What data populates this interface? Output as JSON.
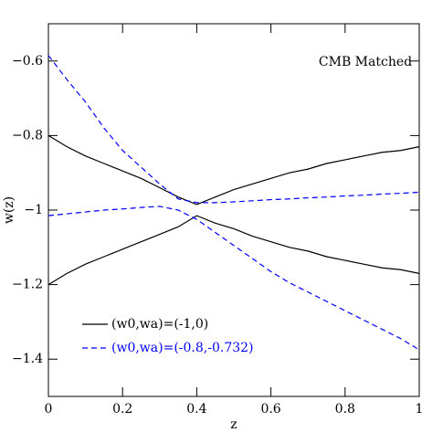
{
  "chart_data": {
    "type": "line",
    "annotation": "CMB Matched",
    "xlabel": "z",
    "ylabel": "w(z)",
    "x": [
      0,
      0.05,
      0.1,
      0.15,
      0.2,
      0.25,
      0.3,
      0.35,
      0.4,
      0.45,
      0.5,
      0.55,
      0.6,
      0.65,
      0.7,
      0.75,
      0.8,
      0.85,
      0.9,
      0.95,
      1
    ],
    "series": [
      {
        "name": "(w0,wa)=(-1,0)",
        "color": "#000000",
        "dashed": false,
        "curves": [
          [
            -0.8,
            -0.83,
            -0.855,
            -0.875,
            -0.895,
            -0.915,
            -0.94,
            -0.965,
            -0.985,
            -0.965,
            -0.945,
            -0.93,
            -0.915,
            -0.9,
            -0.89,
            -0.875,
            -0.865,
            -0.855,
            -0.845,
            -0.84,
            -0.83
          ],
          [
            -1.2,
            -1.17,
            -1.145,
            -1.125,
            -1.105,
            -1.085,
            -1.065,
            -1.045,
            -1.015,
            -1.035,
            -1.05,
            -1.07,
            -1.085,
            -1.1,
            -1.11,
            -1.125,
            -1.135,
            -1.145,
            -1.155,
            -1.16,
            -1.17
          ]
        ]
      },
      {
        "name": "(w0,wa)=(-0.8,-0.732)",
        "color": "#0000ff",
        "dashed": true,
        "curves": [
          [
            -0.585,
            -0.65,
            -0.71,
            -0.78,
            -0.84,
            -0.885,
            -0.93,
            -0.97,
            -0.98,
            -0.98,
            -0.978,
            -0.975,
            -0.972,
            -0.97,
            -0.967,
            -0.965,
            -0.962,
            -0.96,
            -0.957,
            -0.955,
            -0.952
          ],
          [
            -1.015,
            -1.01,
            -1.005,
            -1.0,
            -0.997,
            -0.993,
            -0.99,
            -1.0,
            -1.025,
            -1.06,
            -1.095,
            -1.13,
            -1.165,
            -1.195,
            -1.22,
            -1.245,
            -1.27,
            -1.295,
            -1.32,
            -1.345,
            -1.375
          ]
        ]
      }
    ],
    "xlim": [
      0,
      1
    ],
    "xticks": [
      0,
      0.2,
      0.4,
      0.6,
      0.8,
      1
    ],
    "ylim": [
      -1.5,
      -0.5
    ],
    "yticks": [
      {
        "value": -1.4,
        "label": "−1.4"
      },
      {
        "value": -1.2,
        "label": "−1.2"
      },
      {
        "value": -1,
        "label": "−1"
      },
      {
        "value": -0.8,
        "label": "−0.8"
      },
      {
        "value": -0.6,
        "label": "−0.6"
      }
    ],
    "legend": "lower left"
  }
}
